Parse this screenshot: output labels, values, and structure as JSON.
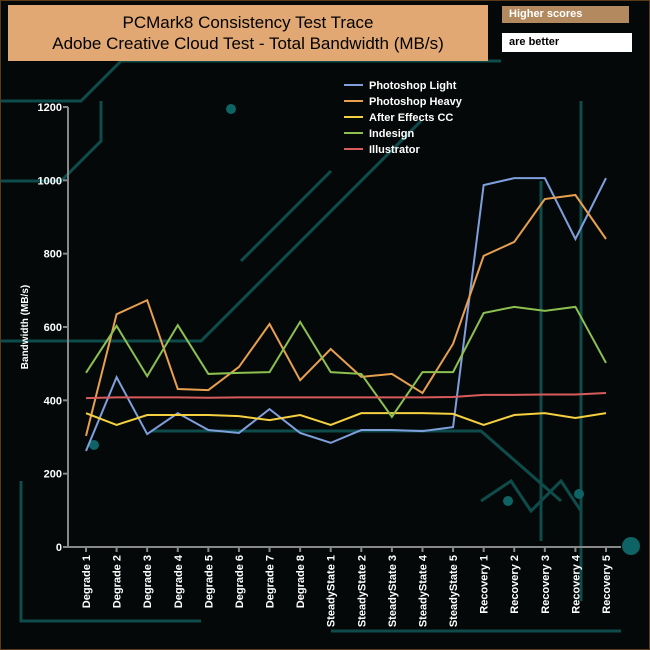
{
  "header": {
    "title_line1": "PCMark8 Consistency Test Trace",
    "title_line2": "Adobe Creative Cloud Test - Total Bandwidth (MB/s)",
    "note_line1": "Higher scores",
    "note_line2": "are better"
  },
  "chart_data": {
    "type": "line",
    "title": "PCMark8 Consistency Test Trace - Adobe Creative Cloud Test - Total Bandwidth (MB/s)",
    "xlabel": "",
    "ylabel": "Bandwidth (MB/s)",
    "ylim": [
      0,
      1200
    ],
    "yticks": [
      0,
      200,
      400,
      600,
      800,
      1000,
      1200
    ],
    "legend_position": "top-center",
    "categories": [
      "Degrade 1",
      "Degrade 2",
      "Degrade 3",
      "Degrade 4",
      "Degrade 5",
      "Degrade 6",
      "Degrade 7",
      "Degrade 8",
      "SteadyState 1",
      "SteadyState 2",
      "SteadyState 3",
      "SteadyState 4",
      "SteadyState 5",
      "Recovery 1",
      "Recovery 2",
      "Recovery 3",
      "Recovery 4",
      "Recovery 5"
    ],
    "series": [
      {
        "name": "Photoshop Light",
        "color": "#7f9fdc",
        "values": [
          262,
          463,
          308,
          365,
          319,
          311,
          376,
          311,
          284,
          319,
          319,
          316,
          327,
          987,
          1006,
          1006,
          840,
          1006
        ]
      },
      {
        "name": " Photoshop Heavy",
        "color": "#e8a050",
        "values": [
          303,
          635,
          673,
          431,
          428,
          491,
          608,
          455,
          540,
          464,
          472,
          420,
          554,
          794,
          832,
          949,
          960,
          840
        ]
      },
      {
        "name": "After Effects CC",
        "color": "#f5d040",
        "values": [
          365,
          333,
          360,
          360,
          360,
          357,
          346,
          360,
          333,
          365,
          365,
          365,
          363,
          333,
          360,
          365,
          352,
          365
        ]
      },
      {
        "name": "Indesign",
        "color": "#8cc050",
        "values": [
          475,
          603,
          466,
          605,
          472,
          475,
          477,
          614,
          477,
          472,
          355,
          477,
          477,
          638,
          655,
          644,
          655,
          502
        ]
      },
      {
        "name": "Illustrator",
        "color": "#d85c5c",
        "values": [
          406,
          408,
          408,
          408,
          407,
          408,
          408,
          408,
          408,
          408,
          408,
          408,
          409,
          415,
          415,
          416,
          416,
          420
        ]
      }
    ]
  }
}
